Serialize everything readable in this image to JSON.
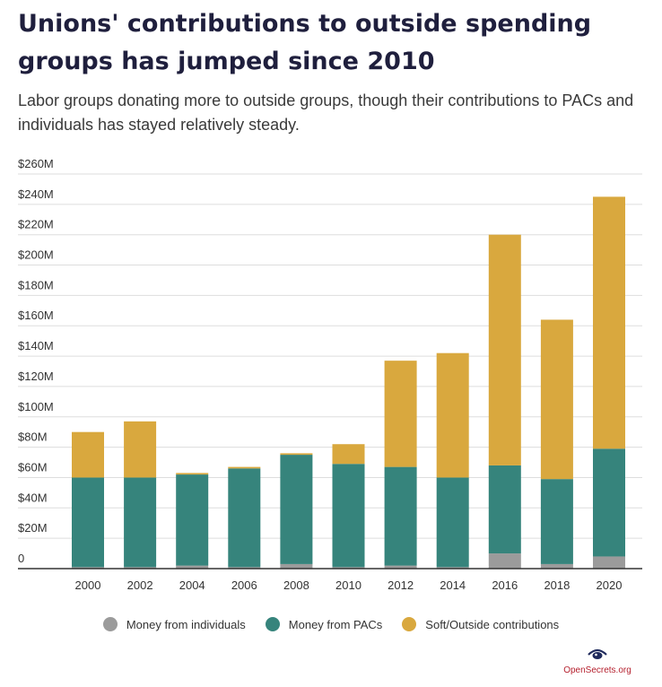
{
  "chart_data": {
    "type": "bar",
    "stacked": true,
    "title": "Unions' contributions to outside spending groups has jumped since 2010",
    "subtitle": "Labor groups donating more to outside groups, though their contributions to PACs and individuals has stayed relatively steady.",
    "categories": [
      "2000",
      "2002",
      "2004",
      "2006",
      "2008",
      "2010",
      "2012",
      "2014",
      "2016",
      "2018",
      "2020"
    ],
    "series": [
      {
        "name": "Money from individuals",
        "color": "#9b9b9b",
        "values": [
          1,
          1,
          2,
          1,
          3,
          1,
          2,
          1,
          10,
          3,
          8
        ]
      },
      {
        "name": "Money from PACs",
        "color": "#36847c",
        "values": [
          59,
          59,
          60,
          65,
          72,
          68,
          65,
          59,
          58,
          56,
          71
        ]
      },
      {
        "name": "Soft/Outside contributions",
        "color": "#d9a83e",
        "values": [
          30,
          37,
          1,
          1,
          1,
          13,
          70,
          82,
          152,
          105,
          166
        ]
      }
    ],
    "y_ticks": [
      "0",
      "$20M",
      "$40M",
      "$60M",
      "$80M",
      "$100M",
      "$120M",
      "$140M",
      "$160M",
      "$180M",
      "$200M",
      "$220M",
      "$240M",
      "$260M"
    ],
    "ylim": [
      0,
      260
    ],
    "xlabel": "",
    "ylabel": "",
    "grid": true,
    "legend_position": "bottom"
  },
  "branding": {
    "source": "OpenSecrets.org",
    "logo_icon": "eye-icon"
  }
}
